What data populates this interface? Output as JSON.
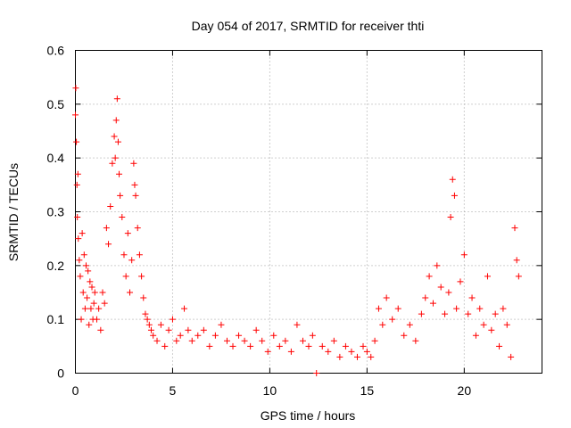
{
  "chart_data": {
    "type": "scatter",
    "title": "Day 054 of 2017, SRMTID for receiver thti",
    "xlabel": "GPS time / hours",
    "ylabel": "SRMTID / TECUs",
    "xlim": [
      0,
      24
    ],
    "ylim": [
      0,
      0.6
    ],
    "xticks": [
      0,
      5,
      10,
      15,
      20
    ],
    "xtick_labels": [
      "0",
      "5",
      "10",
      "15",
      "20"
    ],
    "yticks": [
      0,
      0.1,
      0.2,
      0.3,
      0.4,
      0.5,
      0.6
    ],
    "ytick_labels": [
      "0",
      "0.1",
      "0.2",
      "0.3",
      "0.4",
      "0.5",
      "0.6"
    ],
    "grid": true,
    "marker": "+",
    "color": "#ff0000",
    "series": [
      {
        "name": "SRMTID",
        "x": [
          0.0,
          0.02,
          0.05,
          0.08,
          0.1,
          0.13,
          0.15,
          0.2,
          0.25,
          0.3,
          0.35,
          0.4,
          0.45,
          0.5,
          0.55,
          0.6,
          0.65,
          0.7,
          0.75,
          0.8,
          0.85,
          0.9,
          0.95,
          1.0,
          1.1,
          1.2,
          1.3,
          1.4,
          1.5,
          1.6,
          1.7,
          1.8,
          1.9,
          2.0,
          2.05,
          2.1,
          2.15,
          2.2,
          2.25,
          2.3,
          2.4,
          2.5,
          2.6,
          2.7,
          2.8,
          2.9,
          3.0,
          3.05,
          3.1,
          3.2,
          3.3,
          3.4,
          3.5,
          3.6,
          3.7,
          3.8,
          3.9,
          4.0,
          4.2,
          4.4,
          4.6,
          4.8,
          5.0,
          5.2,
          5.4,
          5.6,
          5.8,
          6.0,
          6.3,
          6.6,
          6.9,
          7.2,
          7.5,
          7.8,
          8.1,
          8.4,
          8.7,
          9.0,
          9.3,
          9.6,
          9.9,
          10.2,
          10.5,
          10.8,
          11.1,
          11.4,
          11.7,
          12.0,
          12.2,
          12.4,
          12.7,
          13.0,
          13.3,
          13.6,
          13.9,
          14.2,
          14.5,
          14.8,
          15.0,
          15.2,
          15.4,
          15.6,
          15.8,
          16.0,
          16.3,
          16.6,
          16.9,
          17.2,
          17.5,
          17.8,
          18.0,
          18.2,
          18.4,
          18.6,
          18.8,
          19.0,
          19.2,
          19.3,
          19.4,
          19.5,
          19.6,
          19.8,
          20.0,
          20.2,
          20.4,
          20.6,
          20.8,
          21.0,
          21.2,
          21.4,
          21.6,
          21.8,
          22.0,
          22.2,
          22.4,
          22.6,
          22.7,
          22.8
        ],
        "y": [
          0.48,
          0.53,
          0.43,
          0.35,
          0.29,
          0.37,
          0.25,
          0.21,
          0.18,
          0.1,
          0.26,
          0.15,
          0.22,
          0.12,
          0.2,
          0.14,
          0.19,
          0.09,
          0.17,
          0.12,
          0.16,
          0.1,
          0.13,
          0.15,
          0.1,
          0.12,
          0.08,
          0.15,
          0.13,
          0.27,
          0.24,
          0.31,
          0.39,
          0.44,
          0.4,
          0.47,
          0.51,
          0.43,
          0.37,
          0.33,
          0.29,
          0.22,
          0.18,
          0.26,
          0.15,
          0.21,
          0.39,
          0.35,
          0.33,
          0.27,
          0.22,
          0.18,
          0.14,
          0.11,
          0.1,
          0.09,
          0.08,
          0.07,
          0.06,
          0.09,
          0.05,
          0.08,
          0.1,
          0.06,
          0.07,
          0.12,
          0.08,
          0.06,
          0.07,
          0.08,
          0.05,
          0.07,
          0.09,
          0.06,
          0.05,
          0.07,
          0.06,
          0.05,
          0.08,
          0.06,
          0.04,
          0.07,
          0.05,
          0.06,
          0.04,
          0.09,
          0.06,
          0.05,
          0.07,
          0.0,
          0.05,
          0.04,
          0.06,
          0.03,
          0.05,
          0.04,
          0.03,
          0.05,
          0.04,
          0.03,
          0.06,
          0.12,
          0.09,
          0.14,
          0.1,
          0.12,
          0.07,
          0.09,
          0.06,
          0.11,
          0.14,
          0.18,
          0.13,
          0.2,
          0.16,
          0.11,
          0.15,
          0.29,
          0.36,
          0.33,
          0.12,
          0.17,
          0.22,
          0.11,
          0.14,
          0.07,
          0.12,
          0.09,
          0.18,
          0.08,
          0.11,
          0.05,
          0.12,
          0.09,
          0.03,
          0.27,
          0.21,
          0.18
        ]
      }
    ]
  }
}
